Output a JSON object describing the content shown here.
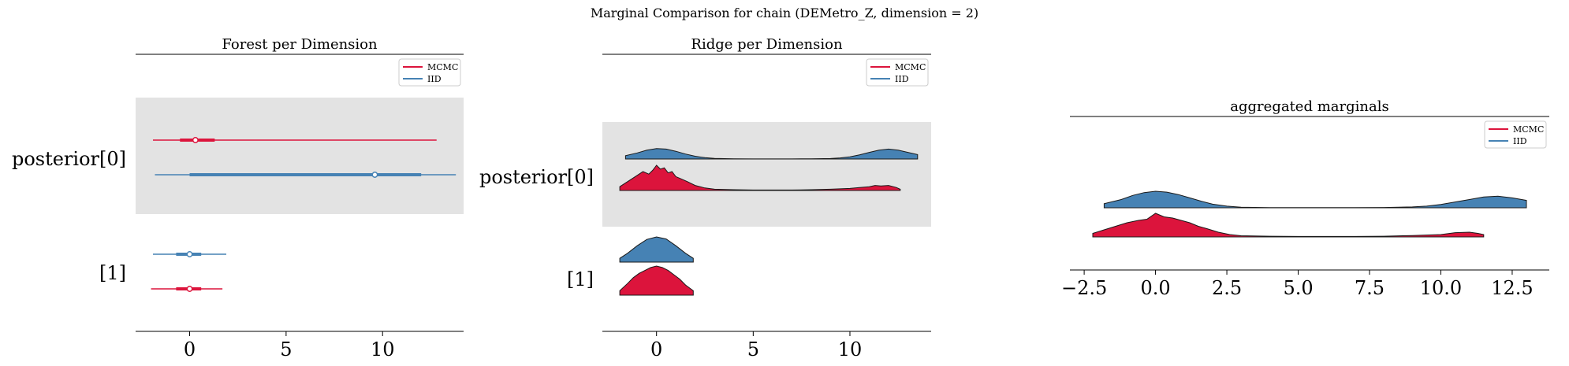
{
  "suptitle": "Marginal Comparison for chain (DEMetro_Z, dimension = 2)",
  "colors": {
    "mcmc": "#dc143c",
    "iid": "#4682b4",
    "band": "#e3e3e3"
  },
  "chart_data": [
    {
      "type": "forest",
      "title": "Forest per Dimension",
      "row_labels": [
        "posterior[0]",
        "[1]"
      ],
      "xticks": [
        0,
        5,
        10
      ],
      "xlim": [
        -2.8,
        14.2
      ],
      "legend": [
        "MCMC",
        "IID"
      ],
      "legend_position": "top-right",
      "series": [
        {
          "name": "IID",
          "rows": [
            {
              "whisker": [
                -1.8,
                13.8
              ],
              "box": [
                0.0,
                12.0
              ],
              "median": 9.6
            },
            {
              "whisker": [
                -1.9,
                1.9
              ],
              "box": [
                -0.7,
                0.6
              ],
              "median": 0.0
            }
          ]
        },
        {
          "name": "MCMC",
          "rows": [
            {
              "whisker": [
                -1.9,
                12.8
              ],
              "box": [
                -0.5,
                1.3
              ],
              "median": 0.3
            },
            {
              "whisker": [
                -2.0,
                1.7
              ],
              "box": [
                -0.7,
                0.6
              ],
              "median": 0.0
            }
          ]
        }
      ]
    },
    {
      "type": "ridgeline",
      "title": "Ridge per Dimension",
      "row_labels": [
        "posterior[0]",
        "[1]"
      ],
      "xticks": [
        0,
        5,
        10
      ],
      "xlim": [
        -2.8,
        14.2
      ],
      "legend": [
        "MCMC",
        "IID"
      ],
      "legend_position": "top-right",
      "series": [
        {
          "name": "IID",
          "rows": [
            {
              "x": [
                -1.6,
                -1,
                -0.5,
                0,
                0.5,
                1,
                1.5,
                2,
                2.5,
                3,
                4,
                5,
                6,
                7,
                8,
                9,
                9.5,
                10,
                10.5,
                11,
                11.5,
                12,
                12.5,
                13,
                13.5
              ],
              "y": [
                0.3,
                0.55,
                0.8,
                0.95,
                0.9,
                0.7,
                0.45,
                0.25,
                0.12,
                0.05,
                0.02,
                0.01,
                0.01,
                0.01,
                0.02,
                0.04,
                0.1,
                0.2,
                0.38,
                0.6,
                0.8,
                0.9,
                0.8,
                0.6,
                0.4
              ]
            },
            {
              "x": [
                -1.9,
                -1.5,
                -1,
                -0.5,
                0,
                0.5,
                1,
                1.5,
                1.9
              ],
              "y": [
                0.15,
                0.35,
                0.65,
                0.9,
                1.0,
                0.92,
                0.65,
                0.35,
                0.15
              ]
            }
          ]
        },
        {
          "name": "MCMC",
          "rows": [
            {
              "x": [
                -1.9,
                -1.5,
                -1,
                -0.7,
                -0.4,
                -0.2,
                0,
                0.2,
                0.4,
                0.6,
                0.8,
                1,
                1.3,
                1.6,
                2,
                2.5,
                3,
                4,
                5,
                6,
                7,
                8,
                9,
                10,
                10.5,
                11,
                11.3,
                11.6,
                12,
                12.4,
                12.6
              ],
              "y": [
                0.15,
                0.35,
                0.6,
                0.75,
                0.65,
                0.8,
                1.0,
                0.85,
                0.9,
                0.7,
                0.75,
                0.55,
                0.45,
                0.35,
                0.2,
                0.1,
                0.05,
                0.03,
                0.02,
                0.02,
                0.02,
                0.03,
                0.05,
                0.08,
                0.12,
                0.15,
                0.2,
                0.18,
                0.2,
                0.12,
                0.05
              ]
            },
            {
              "x": [
                -1.9,
                -1.5,
                -1.2,
                -0.9,
                -0.6,
                -0.3,
                0,
                0.3,
                0.6,
                0.9,
                1.2,
                1.5,
                1.9
              ],
              "y": [
                0.15,
                0.4,
                0.6,
                0.75,
                0.85,
                0.95,
                1.0,
                0.95,
                0.85,
                0.7,
                0.55,
                0.35,
                0.15
              ]
            }
          ]
        }
      ]
    },
    {
      "type": "ridgeline",
      "title": "aggregated marginals",
      "xticks": [
        -2.5,
        0.0,
        2.5,
        5.0,
        7.5,
        10.0,
        12.5
      ],
      "xtick_labels": [
        "−2.5",
        "0.0",
        "2.5",
        "5.0",
        "7.5",
        "10.0",
        "12.5"
      ],
      "xlim": [
        -3.0,
        13.8
      ],
      "legend": [
        "MCMC",
        "IID"
      ],
      "legend_position": "top-right",
      "series": [
        {
          "name": "IID",
          "x": [
            -1.8,
            -1.2,
            -0.8,
            -0.4,
            0,
            0.4,
            0.8,
            1.2,
            1.6,
            2,
            2.5,
            3,
            4,
            5,
            6,
            7,
            8,
            9,
            9.5,
            10,
            10.5,
            11,
            11.5,
            12,
            12.5,
            13
          ],
          "y": [
            0.25,
            0.5,
            0.75,
            0.92,
            1.0,
            0.95,
            0.8,
            0.6,
            0.4,
            0.22,
            0.1,
            0.04,
            0.01,
            0.01,
            0.01,
            0.01,
            0.02,
            0.05,
            0.1,
            0.2,
            0.35,
            0.5,
            0.65,
            0.7,
            0.6,
            0.45
          ]
        },
        {
          "name": "MCMC",
          "x": [
            -2.2,
            -1.8,
            -1.4,
            -1,
            -0.6,
            -0.3,
            0,
            0.3,
            0.6,
            0.9,
            1.2,
            1.5,
            1.8,
            2.2,
            2.6,
            3,
            4,
            5,
            6,
            7,
            8,
            9,
            10,
            10.5,
            11,
            11.3,
            11.5
          ],
          "y": [
            0.15,
            0.3,
            0.45,
            0.6,
            0.7,
            0.75,
            1.0,
            0.85,
            0.8,
            0.7,
            0.6,
            0.45,
            0.35,
            0.2,
            0.1,
            0.05,
            0.03,
            0.02,
            0.02,
            0.02,
            0.03,
            0.06,
            0.1,
            0.18,
            0.2,
            0.15,
            0.1
          ]
        }
      ]
    }
  ]
}
